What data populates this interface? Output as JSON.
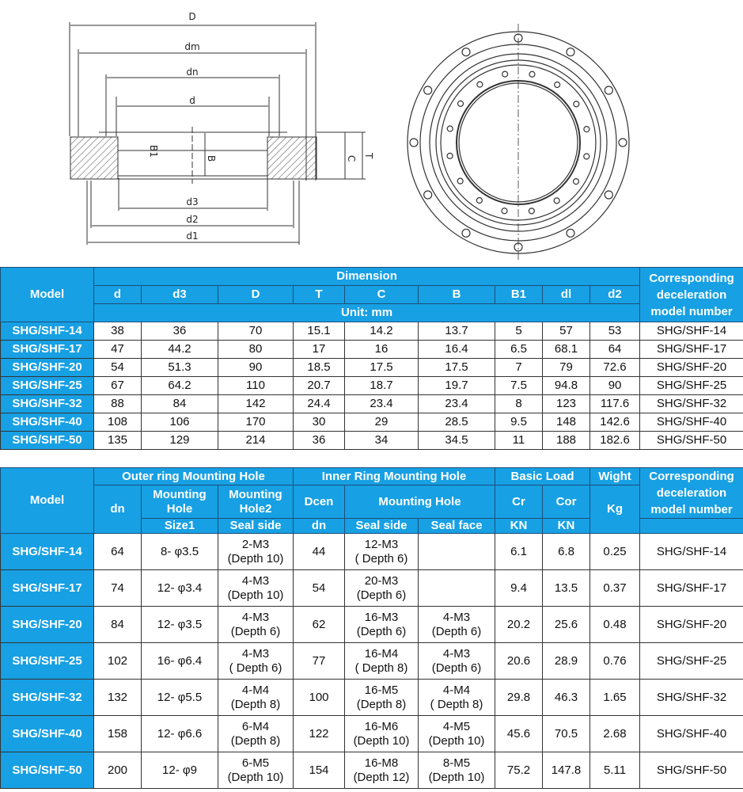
{
  "drawing": {
    "labels": {
      "D": "D",
      "dm": "dm",
      "dn": "dn",
      "d": "d",
      "d3": "d3",
      "d2": "d2",
      "d1": "d1",
      "B1": "B1",
      "B": "B",
      "C": "C",
      "T": "T"
    }
  },
  "colors": {
    "header_blue": "#17a0e3",
    "grid": "#333333"
  },
  "table1": {
    "model_header": "Model",
    "dimension_header": "Dimension",
    "columns": [
      "d",
      "d3",
      "D",
      "T",
      "C",
      "B",
      "B1",
      "dl",
      "d2"
    ],
    "unit": "Unit:  mm",
    "corr_header": "Corresponding deceleration model number",
    "rows": [
      [
        "SHG/SHF-14",
        "38",
        "36",
        "70",
        "15.1",
        "14.2",
        "13.7",
        "5",
        "57",
        "53",
        "SHG/SHF-14"
      ],
      [
        "SHG/SHF-17",
        "47",
        "44.2",
        "80",
        "17",
        "16",
        "16.4",
        "6.5",
        "68.1",
        "64",
        "SHG/SHF-17"
      ],
      [
        "SHG/SHF-20",
        "54",
        "51.3",
        "90",
        "18.5",
        "17.5",
        "17.5",
        "7",
        "79",
        "72.6",
        "SHG/SHF-20"
      ],
      [
        "SHG/SHF-25",
        "67",
        "64.2",
        "110",
        "20.7",
        "18.7",
        "19.7",
        "7.5",
        "94.8",
        "90",
        "SHG/SHF-25"
      ],
      [
        "SHG/SHF-32",
        "88",
        "84",
        "142",
        "24.4",
        "23.4",
        "23.4",
        "8",
        "123",
        "117.6",
        "SHG/SHF-32"
      ],
      [
        "SHG/SHF-40",
        "108",
        "106",
        "170",
        "30",
        "29",
        "28.5",
        "9.5",
        "148",
        "142.6",
        "SHG/SHF-40"
      ],
      [
        "SHG/SHF-50",
        "135",
        "129",
        "214",
        "36",
        "34",
        "34.5",
        "11",
        "188",
        "182.6",
        "SHG/SHF-50"
      ]
    ]
  },
  "table2": {
    "model_header": "Model",
    "outer_header": "Outer ring Mounting Hole",
    "inner_header": "Inner Ring Mounting Hole",
    "load_header": "Basic Load",
    "weight_header": "Wight",
    "corr_header": "Corresponding deceleration model number",
    "dn": "dn",
    "mh1": "Mounting Hole",
    "mh2": "Mounting Hole2",
    "dcen": "Dcen",
    "inner_mh": "Mounting Hole",
    "cr": "Cr",
    "cor": "Cor",
    "kg": "Kg",
    "size1": "Size1",
    "seal_side_outer": "Seal side",
    "dn2": "dn",
    "seal_side": "Seal side",
    "seal_face": "Seal face",
    "kn1": "KN",
    "kn2": "KN",
    "rows": [
      [
        "SHG/SHF-14",
        "64",
        "8- φ3.5",
        "2-M3\n(Depth 10)",
        "44",
        "12-M3\n( Depth 6)",
        "",
        "6.1",
        "6.8",
        "0.25",
        "SHG/SHF-14"
      ],
      [
        "SHG/SHF-17",
        "74",
        "12- φ3.4",
        "4-M3\n(Depth 10)",
        "54",
        "20-M3\n(Depth 6)",
        "",
        "9.4",
        "13.5",
        "0.37",
        "SHG/SHF-17"
      ],
      [
        "SHG/SHF-20",
        "84",
        "12- φ3.5",
        "4-M3\n(Depth 6)",
        "62",
        "16-M3\n(Depth 6)",
        "4-M3\n(Depth 6)",
        "20.2",
        "25.6",
        "0.48",
        "SHG/SHF-20"
      ],
      [
        "SHG/SHF-25",
        "102",
        "16- φ6.4",
        "4-M3\n( Depth 6)",
        "77",
        "16-M4\n( Depth 8)",
        "4-M3\n(Depth 6)",
        "20.6",
        "28.9",
        "0.76",
        "SHG/SHF-25"
      ],
      [
        "SHG/SHF-32",
        "132",
        "12- φ5.5",
        "4-M4\n(Depth 8)",
        "100",
        "16-M5\n(Depth 8)",
        "4-M4\n( Depth 8)",
        "29.8",
        "46.3",
        "1.65",
        "SHG/SHF-32"
      ],
      [
        "SHG/SHF-40",
        "158",
        "12- φ6.6",
        "6-M4\n(Depth 8)",
        "122",
        "16-M6\n(Depth 10)",
        "4-M5\n(Depth 10)",
        "45.6",
        "70.5",
        "2.68",
        "SHG/SHF-40"
      ],
      [
        "SHG/SHF-50",
        "200",
        "12- φ9",
        "6-M5\n(Depth 10)",
        "154",
        "16-M8\n(Depth 12)",
        "8-M5\n(Depth 10)",
        "75.2",
        "147.8",
        "5.11",
        "SHG/SHF-50"
      ]
    ]
  }
}
